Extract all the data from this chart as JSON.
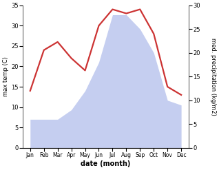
{
  "months": [
    "Jan",
    "Feb",
    "Mar",
    "Apr",
    "May",
    "Jun",
    "Jul",
    "Aug",
    "Sep",
    "Oct",
    "Nov",
    "Dec"
  ],
  "temperature": [
    14,
    24,
    26,
    22,
    19,
    30,
    34,
    33,
    34,
    28,
    15,
    13
  ],
  "precipitation": [
    6,
    6,
    6,
    8,
    12,
    18,
    28,
    28,
    25,
    20,
    10,
    9
  ],
  "temp_ylim": [
    0,
    35
  ],
  "precip_ylim": [
    0,
    30
  ],
  "temp_color": "#cc3333",
  "precip_fill_color": "#c5cef0",
  "xlabel": "date (month)",
  "ylabel_left": "max temp (C)",
  "ylabel_right": "med. precipitation (kg/m2)",
  "left_yticks": [
    0,
    5,
    10,
    15,
    20,
    25,
    30,
    35
  ],
  "right_yticks": [
    0,
    5,
    10,
    15,
    20,
    25,
    30
  ],
  "temp_linewidth": 1.6,
  "bg_color": "#ffffff"
}
